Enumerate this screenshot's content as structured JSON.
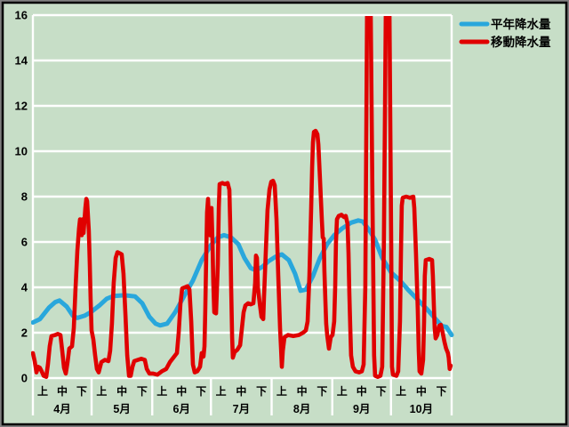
{
  "window": {
    "kind": "precipitation-chart"
  },
  "colors": {
    "background": "#c7dec7",
    "grid": "#ffffff",
    "text": "#000000",
    "frame_outer": "#808080",
    "frame_inner": "#000000",
    "normal_line": "#29a7dc",
    "moving_line": "#e00000"
  },
  "legend": {
    "position": "top-right",
    "items": [
      {
        "label": "平年降水量",
        "color": "#29a7dc"
      },
      {
        "label": "移動降水量",
        "color": "#e00000"
      }
    ]
  },
  "chart_data": {
    "type": "line",
    "title": "",
    "xlabel": "",
    "ylabel": "",
    "y_axis": {
      "min": 0,
      "max": 16,
      "tick_step": 2,
      "tick_labels": [
        "16",
        "14",
        "12",
        "10",
        "8",
        "6",
        "4",
        "2",
        "0"
      ],
      "grid": true
    },
    "x_axis": {
      "unit": "day (Apr 1 = 0)",
      "total_days": 214,
      "months": [
        {
          "label": "4月",
          "days": 30
        },
        {
          "label": "5月",
          "days": 31
        },
        {
          "label": "6月",
          "days": 30
        },
        {
          "label": "7月",
          "days": 31
        },
        {
          "label": "8月",
          "days": 31
        },
        {
          "label": "9月",
          "days": 30
        },
        {
          "label": "10月",
          "days": 31
        }
      ],
      "period_labels": [
        "上",
        "中",
        "下"
      ]
    },
    "legend_position": "top-right outside plot",
    "series": [
      {
        "name": "平年降水量",
        "color": "#29a7dc",
        "width": 5,
        "points": [
          [
            0,
            2.45
          ],
          [
            3.6,
            2.6
          ],
          [
            8.2,
            3.1
          ],
          [
            11.4,
            3.35
          ],
          [
            13.6,
            3.42
          ],
          [
            17.3,
            3.15
          ],
          [
            20.4,
            2.75
          ],
          [
            22.7,
            2.65
          ],
          [
            26.4,
            2.75
          ],
          [
            29.5,
            2.9
          ],
          [
            34,
            3.2
          ],
          [
            37.7,
            3.5
          ],
          [
            41.3,
            3.62
          ],
          [
            46.8,
            3.65
          ],
          [
            52.2,
            3.6
          ],
          [
            55.9,
            3.3
          ],
          [
            59.5,
            2.7
          ],
          [
            62.7,
            2.4
          ],
          [
            65,
            2.32
          ],
          [
            68.6,
            2.4
          ],
          [
            72.7,
            2.9
          ],
          [
            77.2,
            3.6
          ],
          [
            81.8,
            4.3
          ],
          [
            86.3,
            5.2
          ],
          [
            90.9,
            5.85
          ],
          [
            94.5,
            6.2
          ],
          [
            97.7,
            6.3
          ],
          [
            101.3,
            6.2
          ],
          [
            105,
            5.9
          ],
          [
            108.1,
            5.3
          ],
          [
            111.3,
            4.85
          ],
          [
            114,
            4.75
          ],
          [
            117.2,
            4.9
          ],
          [
            120.4,
            5.15
          ],
          [
            124,
            5.35
          ],
          [
            127.2,
            5.45
          ],
          [
            130.8,
            5.2
          ],
          [
            134,
            4.6
          ],
          [
            136.8,
            3.85
          ],
          [
            139.5,
            3.9
          ],
          [
            143.1,
            4.5
          ],
          [
            146.7,
            5.3
          ],
          [
            150.4,
            5.9
          ],
          [
            154,
            6.3
          ],
          [
            158.1,
            6.6
          ],
          [
            162.6,
            6.85
          ],
          [
            166.3,
            6.95
          ],
          [
            168.5,
            6.9
          ],
          [
            171.7,
            6.55
          ],
          [
            174.9,
            6.1
          ],
          [
            178.5,
            5.3
          ],
          [
            183.1,
            4.65
          ],
          [
            187.6,
            4.3
          ],
          [
            192.2,
            3.85
          ],
          [
            196.7,
            3.45
          ],
          [
            201.3,
            3.05
          ],
          [
            205.8,
            2.6
          ],
          [
            209,
            2.3
          ],
          [
            211.3,
            2.25
          ],
          [
            214,
            1.9
          ]
        ]
      },
      {
        "name": "移動降水量",
        "color": "#e00000",
        "width": 4.6,
        "clipped_above_y_max": true,
        "points": [
          [
            0,
            1.1
          ],
          [
            0.9,
            0.75
          ],
          [
            1.8,
            0.25
          ],
          [
            2.7,
            0.5
          ],
          [
            3.6,
            0.45
          ],
          [
            4.5,
            0.3
          ],
          [
            5.5,
            0.1
          ],
          [
            6.8,
            0.05
          ],
          [
            7.7,
            0.6
          ],
          [
            8.6,
            1.4
          ],
          [
            9.5,
            1.85
          ],
          [
            11.4,
            1.9
          ],
          [
            12.7,
            1.95
          ],
          [
            14.1,
            1.9
          ],
          [
            15,
            1.2
          ],
          [
            15.9,
            0.45
          ],
          [
            16.8,
            0.2
          ],
          [
            17.7,
            0.7
          ],
          [
            18.6,
            1.3
          ],
          [
            20,
            1.4
          ],
          [
            20.9,
            2.2
          ],
          [
            21.8,
            4
          ],
          [
            22.7,
            5.6
          ],
          [
            23.6,
            6.6
          ],
          [
            24.1,
            7
          ],
          [
            24.5,
            6.5
          ],
          [
            25,
            6.3
          ],
          [
            25.4,
            7
          ],
          [
            25.9,
            6.4
          ],
          [
            26.8,
            7.5
          ],
          [
            27.3,
            7.9
          ],
          [
            27.7,
            7.8
          ],
          [
            28.6,
            6.5
          ],
          [
            29.1,
            5
          ],
          [
            29.5,
            3.5
          ],
          [
            30,
            2.1
          ],
          [
            30.9,
            1.7
          ],
          [
            31.8,
            1
          ],
          [
            32.7,
            0.4
          ],
          [
            33.6,
            0.25
          ],
          [
            35,
            0.7
          ],
          [
            36.8,
            0.8
          ],
          [
            38.6,
            0.75
          ],
          [
            39.5,
            1.2
          ],
          [
            40.4,
            2.4
          ],
          [
            41.3,
            4.2
          ],
          [
            42.3,
            5.3
          ],
          [
            43.2,
            5.55
          ],
          [
            44.5,
            5.5
          ],
          [
            45.4,
            5.45
          ],
          [
            46.3,
            4.6
          ],
          [
            47.3,
            2.8
          ],
          [
            48.2,
            1
          ],
          [
            49.1,
            0.1
          ],
          [
            50,
            0.1
          ],
          [
            50.9,
            0.5
          ],
          [
            51.8,
            0.75
          ],
          [
            53.6,
            0.8
          ],
          [
            55.4,
            0.85
          ],
          [
            57.2,
            0.8
          ],
          [
            58.2,
            0.4
          ],
          [
            59.5,
            0.2
          ],
          [
            61.3,
            0.2
          ],
          [
            63.6,
            0.15
          ],
          [
            65.9,
            0.3
          ],
          [
            68.1,
            0.4
          ],
          [
            70,
            0.7
          ],
          [
            71.8,
            0.9
          ],
          [
            73.6,
            1.1
          ],
          [
            74.5,
            2
          ],
          [
            75.4,
            3.3
          ],
          [
            76.3,
            3.95
          ],
          [
            77.7,
            4
          ],
          [
            79,
            4.05
          ],
          [
            80,
            3.9
          ],
          [
            80.9,
            2.5
          ],
          [
            81.8,
            0.6
          ],
          [
            82.7,
            0.25
          ],
          [
            84,
            0.3
          ],
          [
            85.4,
            0.5
          ],
          [
            86.3,
            1.1
          ],
          [
            87.2,
            0.95
          ],
          [
            87.7,
            1.4
          ],
          [
            88.1,
            3
          ],
          [
            88.6,
            5.5
          ],
          [
            89,
            7.3
          ],
          [
            89.5,
            7.9
          ],
          [
            90,
            6.9
          ],
          [
            90.4,
            6.3
          ],
          [
            90.9,
            7.2
          ],
          [
            91.3,
            7.5
          ],
          [
            91.8,
            6
          ],
          [
            92.2,
            4.2
          ],
          [
            92.7,
            2.9
          ],
          [
            93.6,
            2.85
          ],
          [
            94.5,
            5
          ],
          [
            95,
            7.5
          ],
          [
            95.4,
            8.55
          ],
          [
            96.8,
            8.6
          ],
          [
            98.1,
            8.55
          ],
          [
            99.5,
            8.6
          ],
          [
            100.4,
            8.3
          ],
          [
            100.9,
            6.5
          ],
          [
            101.3,
            4
          ],
          [
            101.8,
            1.8
          ],
          [
            102.2,
            0.9
          ],
          [
            103.1,
            1.15
          ],
          [
            104.5,
            1.25
          ],
          [
            105.9,
            1.45
          ],
          [
            106.8,
            2.2
          ],
          [
            107.7,
            2.9
          ],
          [
            108.6,
            3.2
          ],
          [
            110,
            3.3
          ],
          [
            111.3,
            3.25
          ],
          [
            112.7,
            3.3
          ],
          [
            113.6,
            4.2
          ],
          [
            114,
            5.4
          ],
          [
            114.5,
            5.3
          ],
          [
            115,
            4
          ],
          [
            115.9,
            3.3
          ],
          [
            116.8,
            2.7
          ],
          [
            117.7,
            2.6
          ],
          [
            118.1,
            3.5
          ],
          [
            119,
            5.5
          ],
          [
            119.9,
            7.4
          ],
          [
            120.9,
            8.3
          ],
          [
            121.8,
            8.65
          ],
          [
            122.7,
            8.7
          ],
          [
            123.6,
            8.5
          ],
          [
            124.5,
            7
          ],
          [
            125.4,
            4.5
          ],
          [
            126.3,
            2.2
          ],
          [
            126.8,
            1.3
          ],
          [
            127.2,
            0.5
          ],
          [
            127.7,
            1.2
          ],
          [
            128.6,
            1.8
          ],
          [
            130.4,
            1.9
          ],
          [
            133.1,
            1.85
          ],
          [
            135.9,
            1.9
          ],
          [
            138.1,
            2
          ],
          [
            139.5,
            2.1
          ],
          [
            140.4,
            2.5
          ],
          [
            141.3,
            4.5
          ],
          [
            142.2,
            7.5
          ],
          [
            142.7,
            9.3
          ],
          [
            143.1,
            10.4
          ],
          [
            143.6,
            10.85
          ],
          [
            144.5,
            10.9
          ],
          [
            145.4,
            10.75
          ],
          [
            145.9,
            10.3
          ],
          [
            146.7,
            8.8
          ],
          [
            147.7,
            6.9
          ],
          [
            148.1,
            6.2
          ],
          [
            148.6,
            6.15
          ],
          [
            149,
            4.7
          ],
          [
            149.5,
            3.4
          ],
          [
            149.9,
            2.4
          ],
          [
            150.4,
            1.9
          ],
          [
            151.3,
            1.3
          ],
          [
            152.2,
            1.8
          ],
          [
            153.1,
            1.9
          ],
          [
            154,
            2.5
          ],
          [
            154.5,
            4
          ],
          [
            154.9,
            6
          ],
          [
            155.4,
            7
          ],
          [
            156.3,
            7.15
          ],
          [
            157.7,
            7.2
          ],
          [
            159,
            7.1
          ],
          [
            159.9,
            7.15
          ],
          [
            160.8,
            6.8
          ],
          [
            161.3,
            5.5
          ],
          [
            161.7,
            3.8
          ],
          [
            162.2,
            2.2
          ],
          [
            162.6,
            1
          ],
          [
            163.5,
            0.5
          ],
          [
            164.9,
            0.3
          ],
          [
            166.7,
            0.25
          ],
          [
            168.1,
            0.3
          ],
          [
            169,
            0.6
          ],
          [
            169.9,
            4
          ],
          [
            170.8,
            16.5
          ],
          [
            172.6,
            16.5
          ],
          [
            173.5,
            8
          ],
          [
            174.4,
            1
          ],
          [
            174.9,
            0.1
          ],
          [
            176.3,
            0.05
          ],
          [
            177.6,
            0.1
          ],
          [
            178.5,
            0.5
          ],
          [
            179.4,
            6
          ],
          [
            180.4,
            16.5
          ],
          [
            182.2,
            16.5
          ],
          [
            183.1,
            6
          ],
          [
            183.5,
            0.5
          ],
          [
            184,
            0.15
          ],
          [
            185.8,
            0.1
          ],
          [
            186.7,
            0.3
          ],
          [
            187.6,
            2.5
          ],
          [
            188.1,
            5.5
          ],
          [
            188.5,
            7.6
          ],
          [
            189,
            7.95
          ],
          [
            190.8,
            8
          ],
          [
            192.6,
            7.95
          ],
          [
            194.4,
            8
          ],
          [
            194.9,
            7.5
          ],
          [
            195.8,
            5.5
          ],
          [
            196.7,
            3
          ],
          [
            197.2,
            1.2
          ],
          [
            197.6,
            0.3
          ],
          [
            198.5,
            0.2
          ],
          [
            199.4,
            0.8
          ],
          [
            199.9,
            2.5
          ],
          [
            200.3,
            4.5
          ],
          [
            200.8,
            5.2
          ],
          [
            202.6,
            5.25
          ],
          [
            204,
            5.2
          ],
          [
            204.4,
            4.5
          ],
          [
            204.9,
            3.2
          ],
          [
            205.3,
            2.2
          ],
          [
            205.8,
            1.75
          ],
          [
            206.7,
            1.9
          ],
          [
            207.6,
            2.3
          ],
          [
            208.5,
            2.35
          ],
          [
            209.4,
            2
          ],
          [
            210.3,
            1.6
          ],
          [
            211.2,
            1.3
          ],
          [
            212.1,
            1.1
          ],
          [
            212.5,
            0.9
          ],
          [
            213,
            0.4
          ],
          [
            213.5,
            0.55
          ]
        ]
      }
    ]
  }
}
